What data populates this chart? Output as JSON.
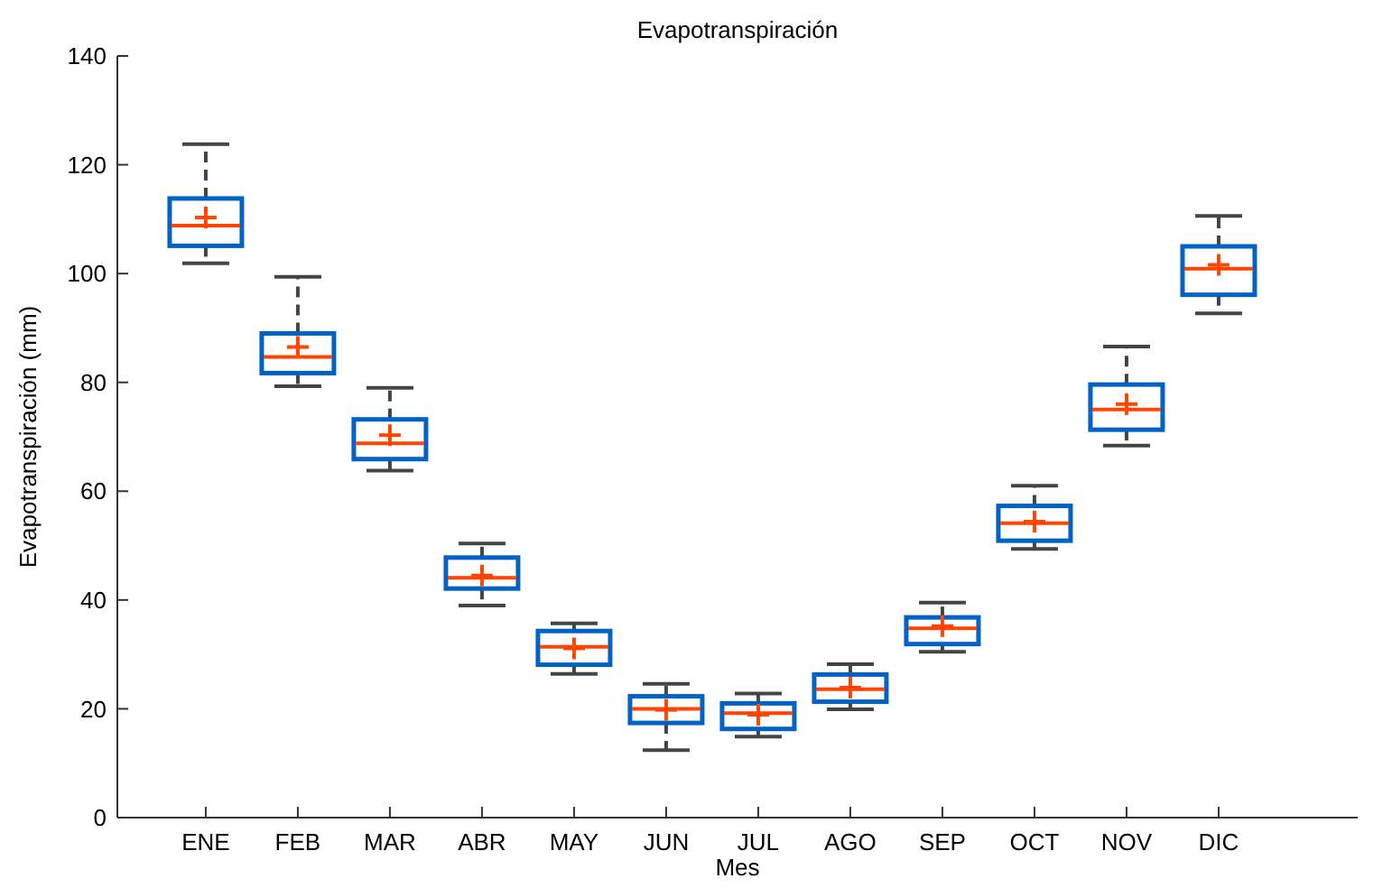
{
  "chart_data": {
    "type": "box",
    "title": "Evapotranspiración",
    "xlabel": "Mes",
    "ylabel": "Evapotranspiración (mm)",
    "categories": [
      "ENE",
      "FEB",
      "MAR",
      "ABR",
      "MAY",
      "JUN",
      "JUL",
      "AGO",
      "SEP",
      "OCT",
      "NOV",
      "DIC"
    ],
    "ylim": [
      0,
      140
    ],
    "yticks": [
      0,
      20,
      40,
      60,
      80,
      100,
      120,
      140
    ],
    "grid": false,
    "marker": "cross",
    "series": [
      {
        "color": "#0062c4",
        "boxes": [
          {
            "low": 101.9,
            "q1": 105.1,
            "median": 108.8,
            "q3": 113.8,
            "high": 123.8,
            "mean": 110.3
          },
          {
            "low": 79.3,
            "q1": 81.7,
            "median": 84.7,
            "q3": 89,
            "high": 99.4,
            "mean": 86.5
          },
          {
            "low": 63.8,
            "q1": 65.9,
            "median": 68.8,
            "q3": 73.2,
            "high": 79,
            "mean": 70.3
          },
          {
            "low": 39,
            "q1": 42.1,
            "median": 44.1,
            "q3": 47.8,
            "high": 50.4,
            "mean": 44.5
          },
          {
            "low": 26.4,
            "q1": 28.1,
            "median": 31.4,
            "q3": 34.3,
            "high": 35.7,
            "mean": 31.1
          },
          {
            "low": 12.4,
            "q1": 17.4,
            "median": 20,
            "q3": 22.3,
            "high": 24.6,
            "mean": 19.8
          },
          {
            "low": 14.9,
            "q1": 16.3,
            "median": 19.2,
            "q3": 21,
            "high": 22.8,
            "mean": 18.9
          },
          {
            "low": 19.9,
            "q1": 21.3,
            "median": 23.6,
            "q3": 26.3,
            "high": 28.2,
            "mean": 23.9
          },
          {
            "low": 30.5,
            "q1": 31.9,
            "median": 34.8,
            "q3": 36.8,
            "high": 39.5,
            "mean": 35.2
          },
          {
            "low": 49.4,
            "q1": 50.9,
            "median": 54.1,
            "q3": 57.3,
            "high": 61,
            "mean": 54.4
          },
          {
            "low": 68.4,
            "q1": 71.3,
            "median": 75,
            "q3": 79.6,
            "high": 86.6,
            "mean": 76
          },
          {
            "low": 92.7,
            "q1": 96.1,
            "median": 100.9,
            "q3": 105,
            "high": 110.6,
            "mean": 101.6
          }
        ]
      }
    ]
  }
}
